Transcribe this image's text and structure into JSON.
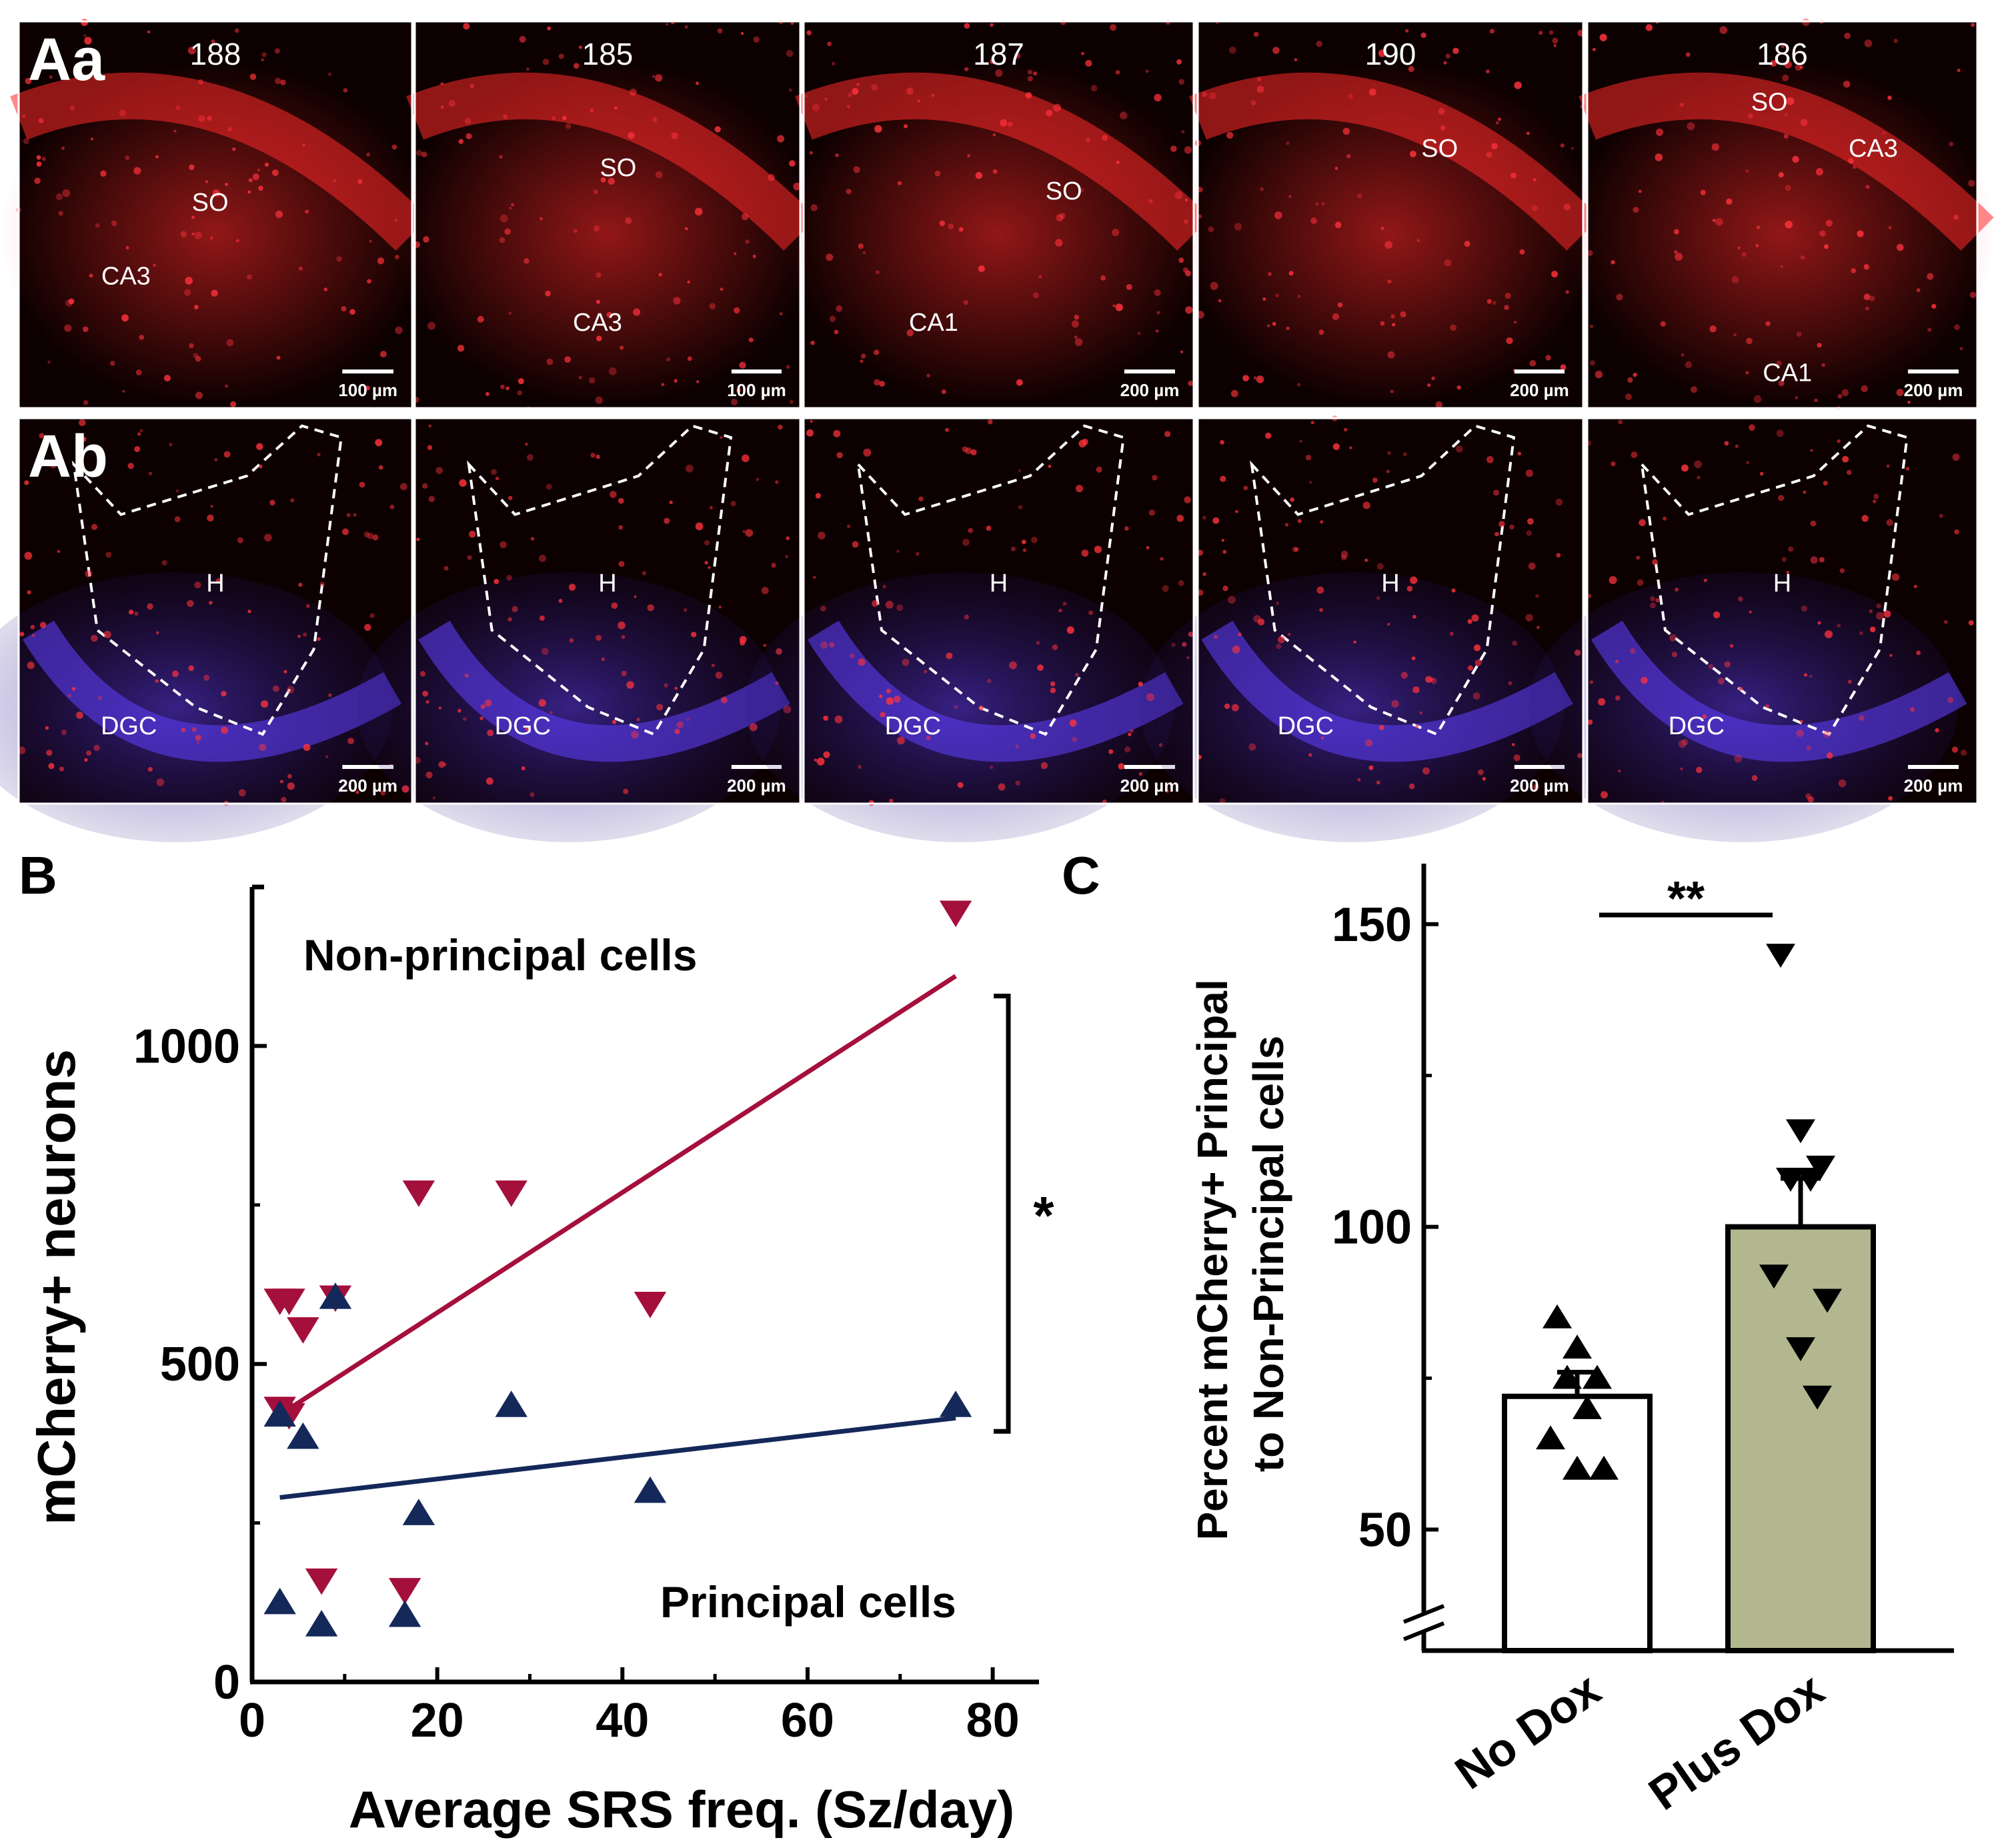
{
  "colors": {
    "non_principal": "#a50f3c",
    "principal": "#14285a",
    "plus_dox_bar": "#b3b78f",
    "no_dox_bar": "#ffffff",
    "micro_bg": "#0c0000",
    "micro_red": "#ff2a2a",
    "micro_blue": "#4a36d8"
  },
  "panel_a": {
    "row_a": {
      "letter": "Aa",
      "panels": [
        {
          "id": "188",
          "labels": [
            "SO",
            "CA3"
          ],
          "scale": "100 µm"
        },
        {
          "id": "185",
          "labels": [
            "SO",
            "CA3"
          ],
          "scale": "100 µm"
        },
        {
          "id": "187",
          "labels": [
            "SO",
            "CA1"
          ],
          "scale": "200 µm"
        },
        {
          "id": "190",
          "labels": [
            "SO"
          ],
          "scale": "200 µm"
        },
        {
          "id": "186",
          "labels": [
            "SO",
            "CA3",
            "CA1"
          ],
          "scale": "200 µm"
        }
      ]
    },
    "row_b": {
      "letter": "Ab",
      "panels": [
        {
          "labels": [
            "H",
            "DGC"
          ],
          "scale": "200 µm"
        },
        {
          "labels": [
            "H",
            "DGC"
          ],
          "scale": "200 µm"
        },
        {
          "labels": [
            "H",
            "DGC"
          ],
          "scale": "200 µm"
        },
        {
          "labels": [
            "H",
            "DGC"
          ],
          "scale": "200 µm"
        },
        {
          "labels": [
            "H",
            "DGC"
          ],
          "scale": "200 µm"
        }
      ]
    }
  },
  "chart_data": [
    {
      "panel": "B",
      "type": "scatter",
      "xlabel": "Average SRS freq. (Sz/day)",
      "ylabel": "mCherry+ neurons",
      "xlim": [
        0,
        85
      ],
      "ylim": [
        0,
        1250
      ],
      "xticks": [
        0,
        20,
        40,
        60,
        80
      ],
      "yticks": [
        0,
        500,
        1000
      ],
      "significance": "*",
      "series": [
        {
          "name": "Non-principal cells",
          "marker": "triangle-down",
          "points": [
            [
              3,
              600
            ],
            [
              4,
              600
            ],
            [
              5.5,
              555
            ],
            [
              9,
              605
            ],
            [
              3,
              430
            ],
            [
              4,
              420
            ],
            [
              7.5,
              160
            ],
            [
              16.5,
              145
            ],
            [
              18,
              770
            ],
            [
              28,
              770
            ],
            [
              43,
              595
            ],
            [
              76,
              1210
            ]
          ],
          "fit": [
            [
              3,
              420
            ],
            [
              76,
              1110
            ]
          ]
        },
        {
          "name": "Principal cells",
          "marker": "triangle-up",
          "points": [
            [
              3,
              420
            ],
            [
              5.5,
              385
            ],
            [
              9,
              605
            ],
            [
              3,
              125
            ],
            [
              7.5,
              90
            ],
            [
              16.5,
              105
            ],
            [
              18,
              265
            ],
            [
              28,
              435
            ],
            [
              43,
              300
            ],
            [
              76,
              435
            ]
          ],
          "fit": [
            [
              3,
              290
            ],
            [
              76,
              415
            ]
          ]
        }
      ]
    },
    {
      "panel": "C",
      "type": "bar",
      "ylabel": "Percent mCherry+ Principal to Non-Principal cells",
      "ylim": [
        30,
        160
      ],
      "yticks": [
        50,
        100,
        150
      ],
      "categories": [
        "No Dox",
        "Plus Dox"
      ],
      "values": [
        72,
        100
      ],
      "errors": [
        4,
        8
      ],
      "significance": "**",
      "points": [
        {
          "category": "No Dox",
          "marker": "triangle-up",
          "values": [
            85,
            80,
            75,
            75,
            70,
            65,
            60,
            60
          ]
        },
        {
          "category": "Plus Dox",
          "marker": "triangle-down",
          "values": [
            145,
            116,
            110,
            108,
            108,
            92,
            88,
            80,
            72
          ]
        }
      ]
    }
  ]
}
